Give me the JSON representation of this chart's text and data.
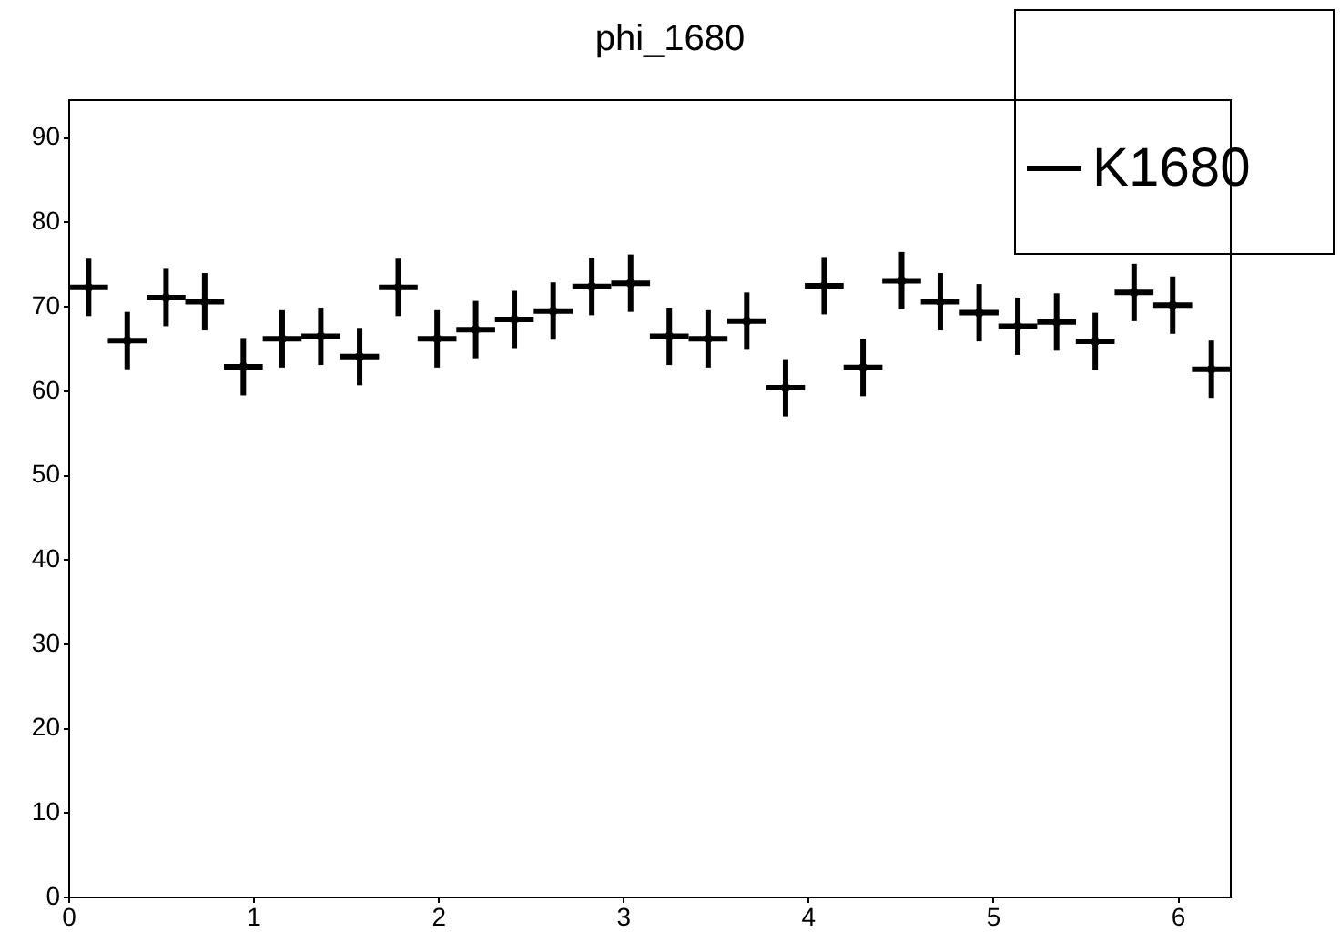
{
  "chart_data": {
    "type": "scatter",
    "title": "phi_1680",
    "legend": "top right",
    "grid": false,
    "xlim": [
      0,
      6.283
    ],
    "xticks": [
      0,
      1,
      2,
      3,
      4,
      5,
      6
    ],
    "ylim": [
      0,
      94.5
    ],
    "yticks": [
      0,
      10,
      20,
      30,
      40,
      50,
      60,
      70,
      80,
      90
    ],
    "series": [
      {
        "name": "K1680",
        "color": "#000000",
        "x": [
          0.105,
          0.314,
          0.524,
          0.733,
          0.942,
          1.152,
          1.361,
          1.571,
          1.78,
          1.99,
          2.199,
          2.408,
          2.618,
          2.827,
          3.037,
          3.246,
          3.456,
          3.665,
          3.875,
          4.084,
          4.294,
          4.503,
          4.712,
          4.922,
          5.131,
          5.341,
          5.55,
          5.76,
          5.969,
          6.178
        ],
        "values": [
          72.3,
          66.0,
          71.1,
          70.6,
          62.9,
          66.2,
          66.5,
          64.1,
          72.3,
          66.2,
          67.3,
          68.5,
          69.5,
          72.4,
          72.8,
          66.5,
          66.2,
          68.3,
          60.4,
          72.5,
          62.8,
          73.1,
          70.6,
          69.3,
          67.7,
          68.2,
          65.9,
          71.7,
          70.2,
          62.6
        ],
        "errors": [
          3.4,
          3.4,
          3.4,
          3.4,
          3.4,
          3.4,
          3.4,
          3.4,
          3.4,
          3.4,
          3.4,
          3.4,
          3.4,
          3.4,
          3.4,
          3.4,
          3.4,
          3.4,
          3.4,
          3.4,
          3.4,
          3.4,
          3.4,
          3.4,
          3.4,
          3.4,
          3.4,
          3.4,
          3.4,
          3.4
        ],
        "xerrors": [
          0.105,
          0.105,
          0.105,
          0.105,
          0.105,
          0.105,
          0.105,
          0.105,
          0.105,
          0.105,
          0.105,
          0.105,
          0.105,
          0.105,
          0.105,
          0.105,
          0.105,
          0.105,
          0.105,
          0.105,
          0.105,
          0.105,
          0.105,
          0.105,
          0.105,
          0.105,
          0.105,
          0.105,
          0.105,
          0.105
        ]
      }
    ]
  }
}
